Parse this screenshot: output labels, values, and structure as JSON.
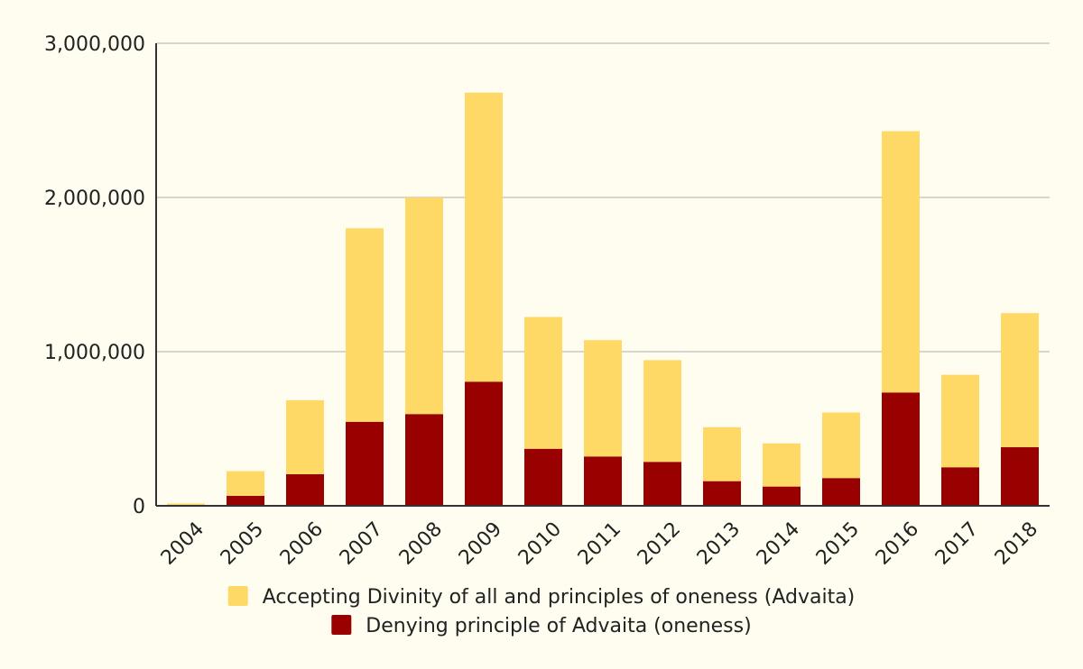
{
  "chart_data": {
    "type": "bar",
    "stacked": true,
    "categories": [
      "2004",
      "2005",
      "2006",
      "2007",
      "2008",
      "2009",
      "2010",
      "2011",
      "2012",
      "2013",
      "2014",
      "2015",
      "2016",
      "2017",
      "2018"
    ],
    "series": [
      {
        "name": "Denying principle of Advaita (oneness)",
        "color": "#990000",
        "values": [
          5000,
          65000,
          205000,
          545000,
          595000,
          805000,
          370000,
          320000,
          285000,
          160000,
          125000,
          180000,
          735000,
          250000,
          380000
        ]
      },
      {
        "name": "Accepting Divinity of all and principles of oneness (Advaita)",
        "color": "#ffd966",
        "values": [
          10000,
          160000,
          480000,
          1255000,
          1405000,
          1875000,
          855000,
          755000,
          660000,
          350000,
          280000,
          425000,
          1695000,
          600000,
          870000
        ]
      }
    ],
    "ylim": [
      0,
      3000000
    ],
    "yticks": [
      0,
      1000000,
      2000000,
      3000000
    ],
    "ytick_labels": [
      "0",
      "1,000,000",
      "2,000,000",
      "3,000,000"
    ],
    "grid": true,
    "legend_position": "bottom",
    "legend_order": [
      1,
      0
    ]
  },
  "colors": {
    "background": "#fffdf0",
    "gridline": "#c8c8c8",
    "axis": "#333333",
    "text": "#222222"
  }
}
